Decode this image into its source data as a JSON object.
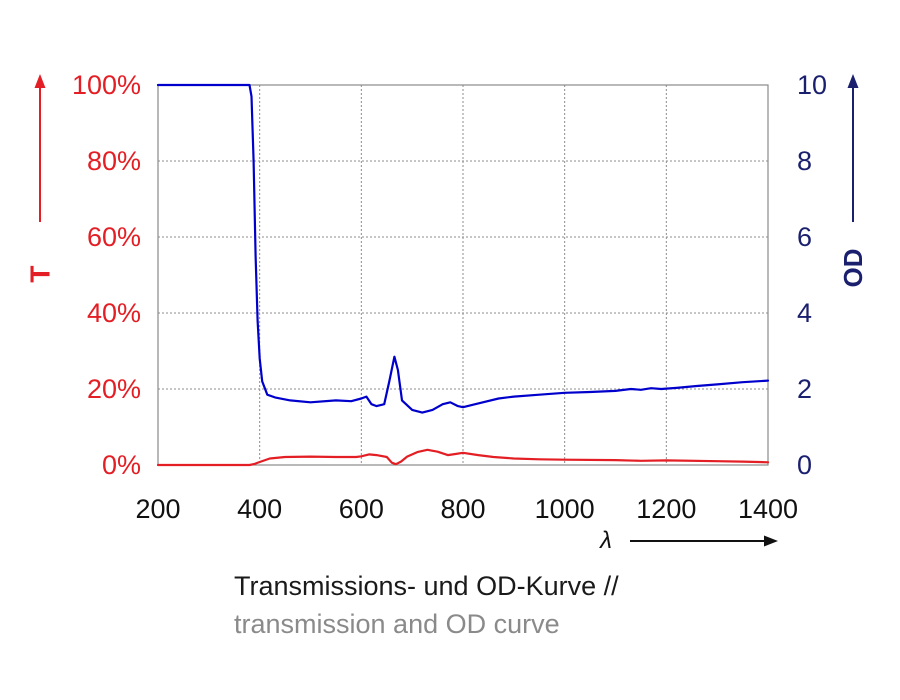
{
  "chart_data": {
    "type": "line",
    "xlim": [
      200,
      1400
    ],
    "x_ticks": [
      "200",
      "400",
      "600",
      "800",
      "1000",
      "1200",
      "1400"
    ],
    "x_tick_values": [
      200,
      400,
      600,
      800,
      1000,
      1200,
      1400
    ],
    "xlabel": "λ",
    "left_axis": {
      "label": "T",
      "ylim": [
        0,
        100
      ],
      "ticks": [
        "0%",
        "20%",
        "40%",
        "60%",
        "80%",
        "100%"
      ],
      "tick_values": [
        0,
        20,
        40,
        60,
        80,
        100
      ],
      "color": "#e31e24"
    },
    "right_axis": {
      "label": "OD",
      "ylim": [
        0,
        10
      ],
      "ticks": [
        "0",
        "2",
        "4",
        "6",
        "8",
        "10"
      ],
      "tick_values": [
        0,
        2,
        4,
        6,
        8,
        10
      ],
      "color": "#1a1f6e"
    },
    "grid": true,
    "series": [
      {
        "name": "T",
        "axis": "left",
        "color": "#e31e24",
        "points": [
          [
            200,
            0
          ],
          [
            380,
            0
          ],
          [
            390,
            0.3
          ],
          [
            400,
            0.8
          ],
          [
            420,
            1.7
          ],
          [
            450,
            2.1
          ],
          [
            500,
            2.2
          ],
          [
            550,
            2.1
          ],
          [
            590,
            2.1
          ],
          [
            600,
            2.3
          ],
          [
            615,
            2.8
          ],
          [
            630,
            2.6
          ],
          [
            650,
            2.1
          ],
          [
            660,
            0.6
          ],
          [
            668,
            0.2
          ],
          [
            678,
            0.9
          ],
          [
            690,
            2.2
          ],
          [
            710,
            3.4
          ],
          [
            730,
            4.0
          ],
          [
            750,
            3.5
          ],
          [
            770,
            2.6
          ],
          [
            785,
            2.9
          ],
          [
            800,
            3.2
          ],
          [
            830,
            2.6
          ],
          [
            860,
            2.1
          ],
          [
            900,
            1.7
          ],
          [
            950,
            1.5
          ],
          [
            1000,
            1.4
          ],
          [
            1100,
            1.3
          ],
          [
            1150,
            1.1
          ],
          [
            1200,
            1.2
          ],
          [
            1300,
            1.0
          ],
          [
            1350,
            0.9
          ],
          [
            1400,
            0.7
          ]
        ]
      },
      {
        "name": "OD",
        "axis": "right",
        "color": "#0000cc",
        "points": [
          [
            200,
            10
          ],
          [
            380,
            10
          ],
          [
            384,
            9.7
          ],
          [
            388,
            8
          ],
          [
            392,
            5.5
          ],
          [
            396,
            3.8
          ],
          [
            400,
            2.8
          ],
          [
            405,
            2.2
          ],
          [
            415,
            1.85
          ],
          [
            430,
            1.78
          ],
          [
            460,
            1.7
          ],
          [
            500,
            1.65
          ],
          [
            550,
            1.7
          ],
          [
            580,
            1.68
          ],
          [
            600,
            1.75
          ],
          [
            610,
            1.8
          ],
          [
            620,
            1.6
          ],
          [
            630,
            1.55
          ],
          [
            645,
            1.6
          ],
          [
            655,
            2.2
          ],
          [
            665,
            2.85
          ],
          [
            672,
            2.5
          ],
          [
            680,
            1.7
          ],
          [
            700,
            1.45
          ],
          [
            720,
            1.38
          ],
          [
            740,
            1.45
          ],
          [
            760,
            1.6
          ],
          [
            775,
            1.65
          ],
          [
            790,
            1.55
          ],
          [
            800,
            1.52
          ],
          [
            830,
            1.62
          ],
          [
            870,
            1.75
          ],
          [
            900,
            1.8
          ],
          [
            950,
            1.85
          ],
          [
            1000,
            1.9
          ],
          [
            1050,
            1.92
          ],
          [
            1100,
            1.95
          ],
          [
            1130,
            2.0
          ],
          [
            1150,
            1.98
          ],
          [
            1170,
            2.02
          ],
          [
            1190,
            2.0
          ],
          [
            1220,
            2.03
          ],
          [
            1260,
            2.08
          ],
          [
            1300,
            2.12
          ],
          [
            1350,
            2.18
          ],
          [
            1400,
            2.22
          ]
        ]
      }
    ]
  },
  "caption": {
    "line1": "Transmissions- und OD-Kurve //",
    "line2": "transmission and OD curve"
  }
}
